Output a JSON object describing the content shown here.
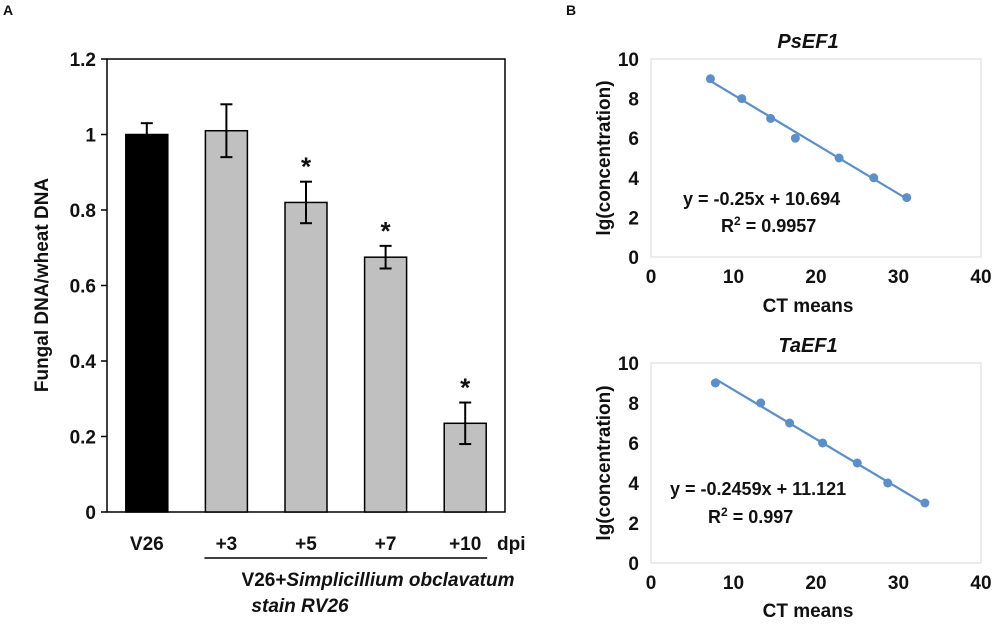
{
  "panel_labels": {
    "a": "A",
    "b": "B"
  },
  "chart_data": [
    {
      "id": "A",
      "type": "bar",
      "ylabel": "Fungal DNA/wheat DNA",
      "ylim": [
        0,
        1.2
      ],
      "yticks": [
        "0",
        "0.2",
        "0.4",
        "0.6",
        "0.8",
        "1",
        "1.2"
      ],
      "ytick_values": [
        0,
        0.2,
        0.4,
        0.6,
        0.8,
        1.0,
        1.2
      ],
      "categories": [
        "V26",
        "+3",
        "+5",
        "+7",
        "+10"
      ],
      "values": [
        1.0,
        1.01,
        0.82,
        0.675,
        0.235
      ],
      "errors": [
        0.03,
        0.07,
        0.055,
        0.03,
        0.055
      ],
      "significance": [
        "",
        "",
        "*",
        "*",
        "*"
      ],
      "bar_colors": [
        "#000000",
        "#c0c0c0",
        "#c0c0c0",
        "#c0c0c0",
        "#c0c0c0"
      ],
      "x_unit": "dpi",
      "group_label_line1_plain": "V26+",
      "group_label_line1_italic": "Simplicillium obclavatum",
      "group_label_line2": "stain RV26"
    },
    {
      "id": "PsEF1",
      "type": "scatter",
      "title": "PsEF1",
      "xlabel": "CT means",
      "ylabel": "lg(concentration)",
      "xlim": [
        0,
        40
      ],
      "ylim": [
        0,
        10
      ],
      "xticks": [
        "0",
        "10",
        "20",
        "30",
        "40"
      ],
      "xtick_values": [
        0,
        10,
        20,
        30,
        40
      ],
      "yticks": [
        "0",
        "2",
        "4",
        "6",
        "8",
        "10"
      ],
      "ytick_values": [
        0,
        2,
        4,
        6,
        8,
        10
      ],
      "x": [
        7.2,
        11.0,
        14.5,
        17.5,
        22.8,
        27.0,
        31.0
      ],
      "y": [
        9,
        8,
        7,
        6,
        5,
        4,
        3
      ],
      "trend_x": [
        7.2,
        31.0
      ],
      "trend_y": [
        8.89,
        2.94
      ],
      "equation": "y = -0.25x + 10.694",
      "r2_prefix": "R",
      "r2_sup": "2",
      "r2_value": " = 0.9957",
      "color": "#5b8fc9"
    },
    {
      "id": "TaEF1",
      "type": "scatter",
      "title": "TaEF1",
      "xlabel": "CT means",
      "ylabel": "lg(concentration)",
      "xlim": [
        0,
        40
      ],
      "ylim": [
        0,
        10
      ],
      "xticks": [
        "0",
        "10",
        "20",
        "30",
        "40"
      ],
      "xtick_values": [
        0,
        10,
        20,
        30,
        40
      ],
      "yticks": [
        "0",
        "2",
        "4",
        "6",
        "8",
        "10"
      ],
      "ytick_values": [
        0,
        2,
        4,
        6,
        8,
        10
      ],
      "x": [
        7.8,
        13.3,
        16.8,
        20.8,
        25.0,
        28.7,
        33.2
      ],
      "y": [
        9,
        8,
        7,
        6,
        5,
        4,
        3
      ],
      "trend_x": [
        7.8,
        33.2
      ],
      "trend_y": [
        9.2,
        2.95
      ],
      "equation": "y = -0.2459x + 11.121",
      "r2_prefix": "R",
      "r2_sup": "2",
      "r2_value": " = 0.997",
      "color": "#5b8fc9"
    }
  ]
}
